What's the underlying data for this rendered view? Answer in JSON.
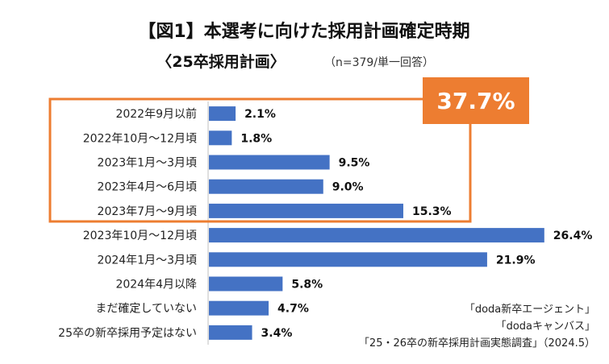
{
  "chart_data": {
    "type": "bar",
    "orientation": "horizontal",
    "title": "【図1】本選考に向けた採用計画確定時期",
    "subtitle": "〈25卒採用計画〉",
    "note": "（n=379/単一回答）",
    "categories": [
      "2022年9月以前",
      "2022年10月〜12月頃",
      "2023年1月〜3月頃",
      "2023年4月〜6月頃",
      "2023年7月〜9月頃",
      "2023年10月〜12月頃",
      "2024年1月〜3月頃",
      "2024年4月以降",
      "まだ確定していない",
      "25卒の新卒採用予定はない"
    ],
    "values": [
      2.1,
      1.8,
      9.5,
      9.0,
      15.3,
      26.4,
      21.9,
      5.8,
      4.7,
      3.4
    ],
    "value_labels": [
      "2.1%",
      "1.8%",
      "9.5%",
      "9.0%",
      "15.3%",
      "26.4%",
      "21.9%",
      "5.8%",
      "4.7%",
      "3.4%"
    ],
    "xlim": [
      0,
      28
    ],
    "bar_color": "#4472c4",
    "highlight": {
      "label": "37.7%",
      "color": "#ed7d31",
      "from_index": 0,
      "to_index": 4
    },
    "source": [
      "「doda新卒エージェント」",
      "「dodaキャンバス」",
      "「25・26卒の新卒採用計画実態調査」（2024.5）"
    ]
  }
}
